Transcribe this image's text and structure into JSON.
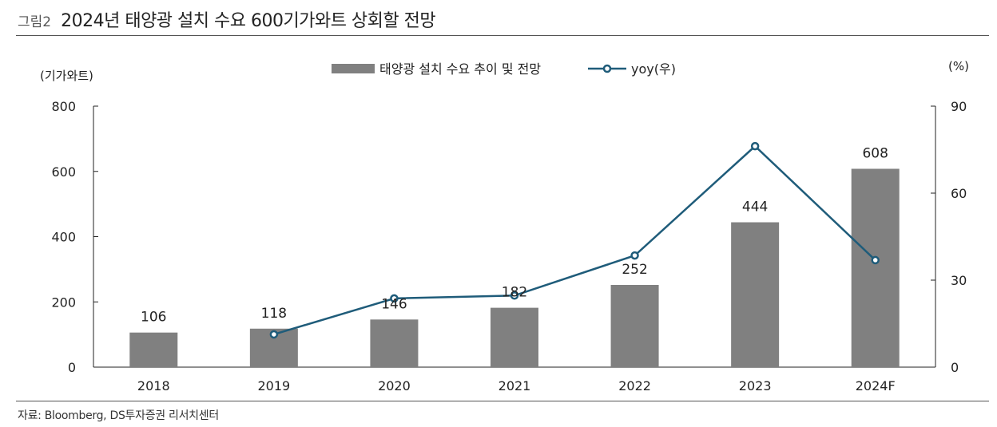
{
  "header": {
    "label": "그림2",
    "title": "2024년 태양광 설치 수요 600기가와트 상회할 전망"
  },
  "source": "자료: Bloomberg, DS투자증권 리서치센터",
  "chart_data": {
    "type": "bar",
    "categories": [
      "2018",
      "2019",
      "2020",
      "2021",
      "2022",
      "2023",
      "2024F"
    ],
    "series": [
      {
        "name": "태양광 설치 수요 추이 및 전망",
        "type": "bar",
        "axis": "left",
        "color": "#808080",
        "values": [
          106,
          118,
          146,
          182,
          252,
          444,
          608
        ],
        "data_labels": [
          "106",
          "118",
          "146",
          "182",
          "252",
          "444",
          "608"
        ]
      },
      {
        "name": "yoy(우)",
        "type": "line",
        "axis": "right",
        "color": "#1f5c7a",
        "values": [
          null,
          11.3,
          23.7,
          24.7,
          38.5,
          76.2,
          36.9
        ]
      }
    ],
    "left_axis": {
      "unit": "(기가와트)",
      "ylim": [
        0,
        800
      ],
      "ticks": [
        "0",
        "200",
        "400",
        "600",
        "800"
      ]
    },
    "right_axis": {
      "unit": "(%)",
      "ylim": [
        0,
        90
      ],
      "ticks": [
        "0",
        "30",
        "60",
        "90"
      ]
    },
    "grid": false,
    "legend": "top-center"
  }
}
